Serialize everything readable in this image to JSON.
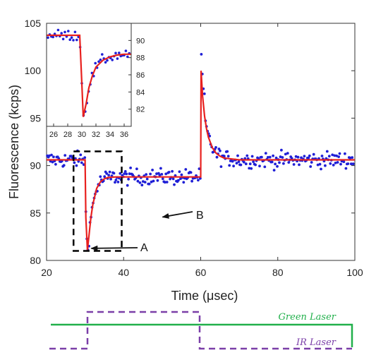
{
  "chart_data": {
    "type": "scatter",
    "main": {
      "xlabel": "Time (μsec)",
      "ylabel": "Fluorescence (kcps)",
      "xlim": [
        20,
        100
      ],
      "ylim": [
        80,
        105
      ],
      "xticks": [
        20,
        40,
        60,
        80,
        100
      ],
      "yticks": [
        80,
        85,
        90,
        95,
        100,
        105
      ],
      "colors": {
        "points": "#1f1fd6",
        "fit": "#e8201e"
      },
      "fit": {
        "x": [
          20,
          30,
          30.2,
          30.6,
          31,
          31.5,
          32,
          33,
          34,
          35,
          36,
          38,
          40,
          45,
          50,
          55,
          60,
          60.1,
          60.5,
          61,
          61.5,
          62,
          63,
          64,
          65,
          66,
          68,
          70,
          75,
          80,
          90,
          100
        ],
        "y": [
          90.6,
          90.6,
          84.5,
          81.1,
          82.6,
          84.5,
          85.9,
          87.6,
          88.3,
          88.6,
          88.75,
          88.8,
          88.8,
          88.8,
          88.8,
          88.8,
          88.8,
          100,
          97.3,
          95.2,
          93.9,
          93.0,
          91.9,
          91.3,
          91.0,
          90.8,
          90.7,
          90.6,
          90.6,
          90.6,
          90.6,
          90.6
        ]
      },
      "points_note": "noisy scatter around fit"
    },
    "inset": {
      "xlim": [
        25,
        37
      ],
      "ylim": [
        80,
        92
      ],
      "xticks": [
        26,
        28,
        30,
        32,
        34,
        36
      ],
      "yticks": [
        82,
        84,
        86,
        88,
        90
      ],
      "fit": {
        "x": [
          25,
          29.7,
          30,
          30.2,
          30.6,
          31,
          31.5,
          32,
          33,
          34,
          35,
          36,
          37
        ],
        "y": [
          90.6,
          90.6,
          85.0,
          81.1,
          82.6,
          84.5,
          85.9,
          86.9,
          87.7,
          88.1,
          88.3,
          88.4,
          88.4
        ]
      }
    },
    "annotations": [
      {
        "label": "A",
        "points_to_x": 30.5,
        "points_to_y": 81.2
      },
      {
        "label": "B",
        "points_to_x": 49,
        "points_to_y": 84.5
      }
    ],
    "lasers": [
      {
        "name": "Green Laser",
        "color": "#21b04b"
      },
      {
        "name": "IR Laser",
        "color": "#7b3fa8"
      }
    ]
  }
}
